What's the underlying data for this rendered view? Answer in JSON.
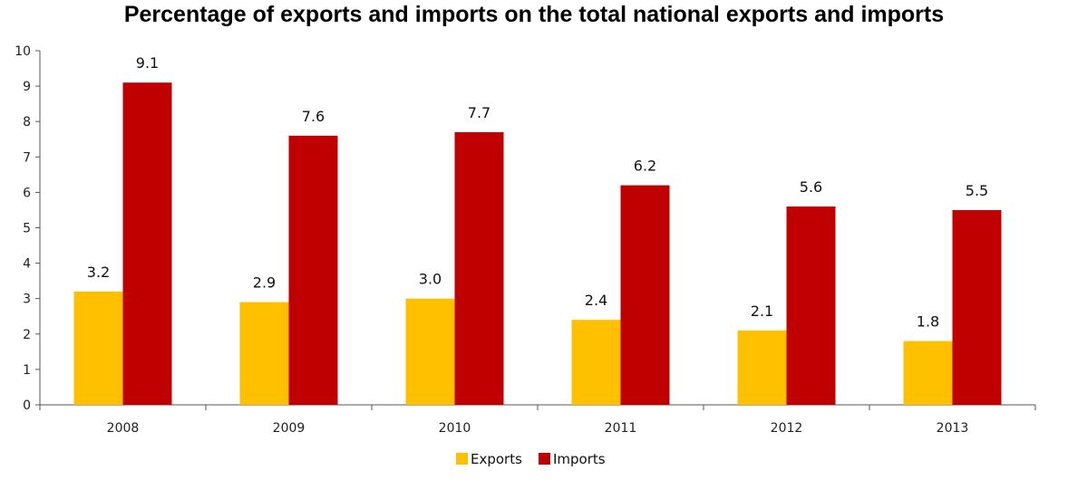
{
  "chart_data": {
    "type": "bar",
    "title": "Percentage of exports and imports on the total national exports and imports",
    "xlabel": "",
    "ylabel": "",
    "categories": [
      "2008",
      "2009",
      "2010",
      "2011",
      "2012",
      "2013"
    ],
    "ylim": [
      0,
      10
    ],
    "yticks": [
      0,
      1,
      2,
      3,
      4,
      5,
      6,
      7,
      8,
      9,
      10
    ],
    "grid": false,
    "legend_position": "bottom",
    "series": [
      {
        "name": "Exports",
        "color": "#FFC000",
        "values": [
          3.2,
          2.9,
          3.0,
          2.4,
          2.1,
          1.8
        ],
        "labels": [
          "3.2",
          "2.9",
          "3.0",
          "2.4",
          "2.1",
          "1.8"
        ]
      },
      {
        "name": "Imports",
        "color": "#C00000",
        "values": [
          9.1,
          7.6,
          7.7,
          6.2,
          5.6,
          5.5
        ],
        "labels": [
          "9.1",
          "7.6",
          "7.7",
          "6.2",
          "5.6",
          "5.5"
        ]
      }
    ]
  }
}
